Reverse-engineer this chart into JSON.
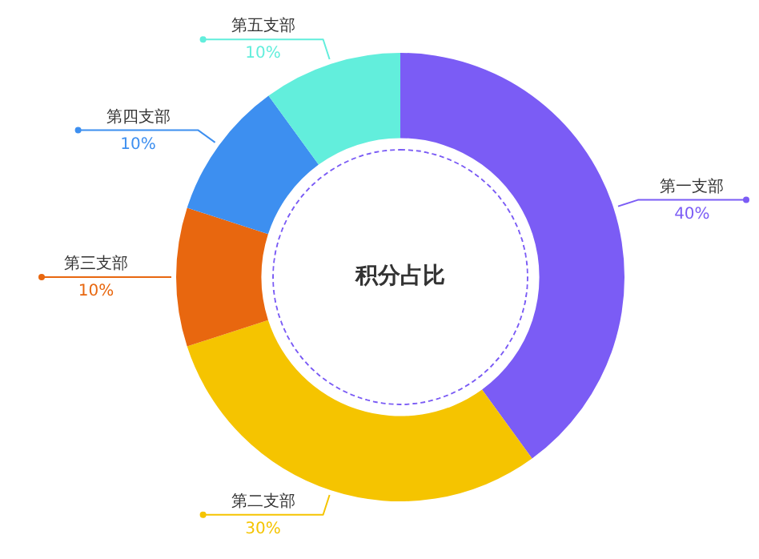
{
  "chart_data": {
    "type": "donut",
    "title": "积分占比",
    "categories": [
      "第一支部",
      "第二支部",
      "第三支部",
      "第四支部",
      "第五支部"
    ],
    "values": [
      40,
      30,
      10,
      10,
      10
    ],
    "value_labels": [
      "40%",
      "30%",
      "10%",
      "10%",
      "10%"
    ],
    "colors": [
      "#7b5cf5",
      "#f5c400",
      "#e8670f",
      "#3d8ff0",
      "#62eedc"
    ]
  }
}
